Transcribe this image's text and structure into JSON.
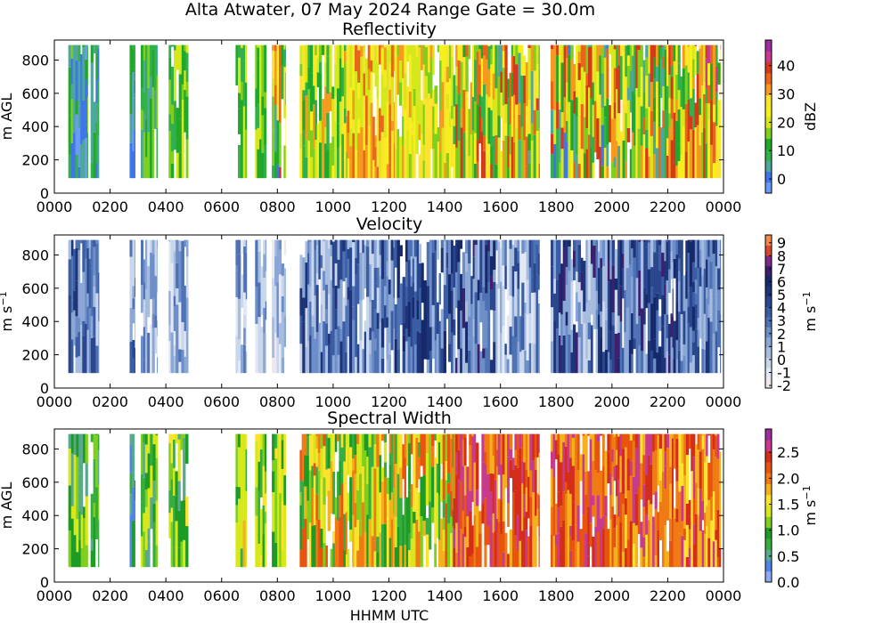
{
  "chart_data": {
    "figure_title": "Alta Atwater, 07 May 2024 Range Gate = 30.0m",
    "xlabel": "HHMM UTC",
    "x_ticks": [
      "0000",
      "0200",
      "0400",
      "0600",
      "0800",
      "1000",
      "1200",
      "1400",
      "1600",
      "1800",
      "2000",
      "2200",
      "0000"
    ],
    "y_ticks": [
      "0",
      "200",
      "400",
      "600",
      "800"
    ],
    "panels": [
      {
        "type": "heatmap",
        "title": "Reflectivity",
        "ylabel": "m AGL",
        "ylim": [
          0,
          920
        ],
        "cb_label": "dBZ",
        "cb_range": [
          -5,
          49
        ],
        "cb_ticks": [
          {
            "v": 0,
            "t": "0"
          },
          {
            "v": 10,
            "t": "10"
          },
          {
            "v": 20,
            "t": "20"
          },
          {
            "v": 30,
            "t": "30"
          },
          {
            "v": 40,
            "t": "40"
          }
        ],
        "colors": [
          "#6a9af5",
          "#3f76e8",
          "#4da89a",
          "#33b04a",
          "#1fa82a",
          "#7fcf1c",
          "#d6e81a",
          "#f6ef1e",
          "#fde22e",
          "#f39a1f",
          "#e8651a",
          "#d43a1a",
          "#c83a8c",
          "#9b2fa0"
        ],
        "segments": [
          {
            "start": 0.5,
            "end": 1.2,
            "range": [
              0,
              5
            ]
          },
          {
            "start": 1.3,
            "end": 1.6,
            "range": [
              1,
              4
            ]
          },
          {
            "start": 2.7,
            "end": 2.9,
            "range": [
              0,
              4
            ]
          },
          {
            "start": 3.1,
            "end": 3.7,
            "range": [
              2,
              5
            ]
          },
          {
            "start": 4.1,
            "end": 4.8,
            "range": [
              3,
              6
            ]
          },
          {
            "start": 6.5,
            "end": 6.9,
            "range": [
              3,
              6
            ]
          },
          {
            "start": 7.2,
            "end": 7.6,
            "range": [
              3,
              6
            ]
          },
          {
            "start": 7.8,
            "end": 8.3,
            "range": [
              1,
              11
            ]
          },
          {
            "start": 8.8,
            "end": 10.5,
            "range": [
              3,
              9
            ]
          },
          {
            "start": 10.5,
            "end": 12.2,
            "range": [
              6,
              10
            ]
          },
          {
            "start": 12.2,
            "end": 14.3,
            "range": [
              5,
              9
            ]
          },
          {
            "start": 14.3,
            "end": 15.9,
            "range": [
              3,
              11
            ]
          },
          {
            "start": 15.9,
            "end": 17.4,
            "range": [
              2,
              11
            ]
          },
          {
            "start": 17.8,
            "end": 20.2,
            "range": [
              1,
              11
            ]
          },
          {
            "start": 20.2,
            "end": 22.2,
            "range": [
              2,
              11
            ]
          },
          {
            "start": 22.2,
            "end": 23.9,
            "range": [
              3,
              12
            ]
          }
        ]
      },
      {
        "type": "heatmap",
        "title": "Velocity",
        "ylabel": "m s",
        "ylabel_exp": "−1",
        "ylim": [
          0,
          920
        ],
        "cb_label": "m s",
        "cb_exp": "−1",
        "cb_range": [
          -2.2,
          9.6
        ],
        "cb_ticks": [
          {
            "v": -2,
            "t": "-2"
          },
          {
            "v": -1,
            "t": "-1"
          },
          {
            "v": 0,
            "t": "0"
          },
          {
            "v": 1,
            "t": "1"
          },
          {
            "v": 2,
            "t": "2"
          },
          {
            "v": 3,
            "t": "3"
          },
          {
            "v": 4,
            "t": "4"
          },
          {
            "v": 5,
            "t": "5"
          },
          {
            "v": 6,
            "t": "6"
          },
          {
            "v": 7,
            "t": "7"
          },
          {
            "v": 8,
            "t": "8"
          },
          {
            "v": 9,
            "t": "9"
          }
        ],
        "colors": [
          "#f0e6ee",
          "#e1e9f5",
          "#c9d6ec",
          "#a7bde0",
          "#8aa7d6",
          "#6d8ec8",
          "#4f72b5",
          "#3a5da4",
          "#2a478e",
          "#1d3578",
          "#16296a",
          "#3c1f6e",
          "#7a2a8a",
          "#d6492b",
          "#ec8a4f"
        ],
        "segments": [
          {
            "start": 0.5,
            "end": 1.0,
            "range": [
              3,
              9
            ]
          },
          {
            "start": 1.0,
            "end": 1.6,
            "range": [
              2,
              8
            ]
          },
          {
            "start": 2.7,
            "end": 2.9,
            "range": [
              2,
              8
            ]
          },
          {
            "start": 3.1,
            "end": 3.7,
            "range": [
              1,
              6
            ]
          },
          {
            "start": 4.1,
            "end": 4.8,
            "range": [
              1,
              6
            ]
          },
          {
            "start": 6.5,
            "end": 6.9,
            "range": [
              1,
              6
            ]
          },
          {
            "start": 7.2,
            "end": 7.6,
            "range": [
              1,
              6
            ]
          },
          {
            "start": 7.8,
            "end": 8.3,
            "range": [
              0,
              5
            ]
          },
          {
            "start": 8.8,
            "end": 10.5,
            "range": [
              2,
              9
            ]
          },
          {
            "start": 10.5,
            "end": 12.2,
            "range": [
              2,
              9
            ]
          },
          {
            "start": 12.2,
            "end": 14.3,
            "range": [
              3,
              10
            ]
          },
          {
            "start": 14.3,
            "end": 15.9,
            "range": [
              3,
              11
            ]
          },
          {
            "start": 15.9,
            "end": 17.4,
            "range": [
              1,
              8
            ]
          },
          {
            "start": 17.8,
            "end": 20.2,
            "range": [
              2,
              11
            ]
          },
          {
            "start": 20.2,
            "end": 22.2,
            "range": [
              3,
              11
            ]
          },
          {
            "start": 22.2,
            "end": 23.9,
            "range": [
              3,
              10
            ]
          }
        ]
      },
      {
        "type": "heatmap",
        "title": "Spectral Width",
        "ylabel": "m AGL",
        "ylim": [
          0,
          920
        ],
        "cb_label": "m s",
        "cb_exp": "−1",
        "cb_range": [
          0,
          2.95
        ],
        "cb_ticks": [
          {
            "v": 0,
            "t": "0.0"
          },
          {
            "v": 0.5,
            "t": "0.5"
          },
          {
            "v": 1,
            "t": "1.0"
          },
          {
            "v": 1.5,
            "t": "1.5"
          },
          {
            "v": 2,
            "t": "2.0"
          },
          {
            "v": 2.5,
            "t": "2.5"
          }
        ],
        "colors": [
          "#8fa9f3",
          "#4f86e6",
          "#5aa88e",
          "#38ad3f",
          "#1c9b25",
          "#7fcf1c",
          "#d6e81a",
          "#fde22e",
          "#f5b01e",
          "#f07a14",
          "#e8540e",
          "#d42d1a",
          "#c83a8c",
          "#9b2fa0"
        ],
        "segments": [
          {
            "start": 0.5,
            "end": 1.2,
            "range": [
              2,
              6
            ]
          },
          {
            "start": 1.3,
            "end": 1.6,
            "range": [
              2,
              5
            ]
          },
          {
            "start": 2.7,
            "end": 2.9,
            "range": [
              1,
              4
            ]
          },
          {
            "start": 3.1,
            "end": 3.7,
            "range": [
              2,
              6
            ]
          },
          {
            "start": 4.1,
            "end": 4.8,
            "range": [
              2,
              7
            ]
          },
          {
            "start": 6.5,
            "end": 6.9,
            "range": [
              3,
              8
            ]
          },
          {
            "start": 7.2,
            "end": 7.6,
            "range": [
              3,
              7
            ]
          },
          {
            "start": 7.8,
            "end": 8.3,
            "range": [
              3,
              7
            ]
          },
          {
            "start": 8.8,
            "end": 10.5,
            "range": [
              3,
              10
            ]
          },
          {
            "start": 10.5,
            "end": 12.2,
            "range": [
              3,
              9
            ]
          },
          {
            "start": 12.2,
            "end": 14.3,
            "range": [
              3,
              10
            ]
          },
          {
            "start": 14.3,
            "end": 15.9,
            "range": [
              8,
              12
            ]
          },
          {
            "start": 15.9,
            "end": 17.4,
            "range": [
              8,
              12
            ]
          },
          {
            "start": 17.8,
            "end": 20.2,
            "range": [
              8,
              12
            ]
          },
          {
            "start": 20.2,
            "end": 22.2,
            "range": [
              7,
              12
            ]
          },
          {
            "start": 22.2,
            "end": 23.9,
            "range": [
              7,
              12
            ]
          }
        ]
      }
    ]
  }
}
